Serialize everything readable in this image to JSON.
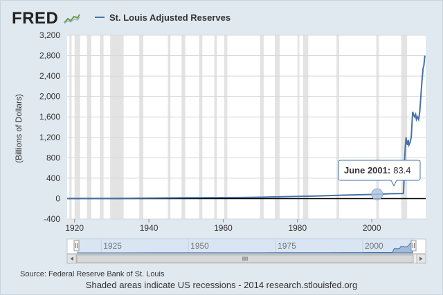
{
  "header": {
    "logo_text": "FRED",
    "logo_icon": "trend-graph-icon"
  },
  "legend": {
    "series_name": "St. Louis Adjusted Reserves",
    "color": "#4572a7"
  },
  "chart_data": {
    "type": "line",
    "title": "",
    "xlabel": "",
    "ylabel": "(Billions of Dollars)",
    "xlim": [
      1918,
      2014.5
    ],
    "ylim": [
      -400,
      3200
    ],
    "x_ticks": [
      "1920",
      "1940",
      "1960",
      "1980",
      "2000"
    ],
    "y_ticks": [
      "-400",
      "0",
      "400",
      "800",
      "1,200",
      "1,600",
      "2,000",
      "2,400",
      "2,800",
      "3,200"
    ],
    "grid": true,
    "recessions_shaded": true,
    "recessions": [
      [
        1918.6,
        1919.2
      ],
      [
        1920.0,
        1921.5
      ],
      [
        1923.3,
        1924.5
      ],
      [
        1926.8,
        1927.8
      ],
      [
        1929.6,
        1933.2
      ],
      [
        1937.4,
        1938.5
      ],
      [
        1945.1,
        1945.8
      ],
      [
        1948.8,
        1949.8
      ],
      [
        1953.5,
        1954.4
      ],
      [
        1957.6,
        1958.3
      ],
      [
        1960.3,
        1961.1
      ],
      [
        1969.9,
        1970.9
      ],
      [
        1973.9,
        1975.2
      ],
      [
        1980.0,
        1980.5
      ],
      [
        1981.5,
        1982.9
      ],
      [
        1990.5,
        1991.2
      ],
      [
        2001.2,
        2001.9
      ],
      [
        2007.9,
        2009.5
      ]
    ],
    "series": [
      {
        "name": "St. Louis Adjusted Reserves",
        "color": "#4572a7",
        "x": [
          1918,
          1930,
          1940,
          1950,
          1960,
          1965,
          1970,
          1975,
          1980,
          1985,
          1990,
          1995,
          2000,
          2001.42,
          2005,
          2008.5,
          2008.7,
          2008.8,
          2008.9,
          2009.0,
          2009.2,
          2009.4,
          2009.6,
          2009.8,
          2010.0,
          2010.3,
          2010.6,
          2010.8,
          2011.0,
          2011.2,
          2011.5,
          2011.8,
          2012.0,
          2012.3,
          2012.6,
          2012.9,
          2013.2,
          2013.5,
          2013.8,
          2014.0,
          2014.2,
          2014.3
        ],
        "y": [
          3,
          4,
          10,
          15,
          19,
          21,
          26,
          35,
          42,
          50,
          62,
          72,
          80,
          83.4,
          95,
          100,
          400,
          700,
          850,
          1000,
          1200,
          1100,
          1050,
          1150,
          1050,
          1100,
          1200,
          1450,
          1700,
          1650,
          1600,
          1650,
          1550,
          1600,
          1550,
          1700,
          2000,
          2300,
          2550,
          2600,
          2750,
          2800
        ]
      }
    ],
    "tooltip": {
      "label": "June 2001",
      "value": "83.4",
      "x": 2001.42,
      "y": 83.4
    },
    "navigator": {
      "x_ticks": [
        "1925",
        "1950",
        "1975",
        "2000"
      ]
    }
  },
  "footer": {
    "source": "Source: Federal Reserve Bank of St. Louis",
    "note": "Shaded areas indicate US recessions - 2014 research.stlouisfed.org"
  }
}
